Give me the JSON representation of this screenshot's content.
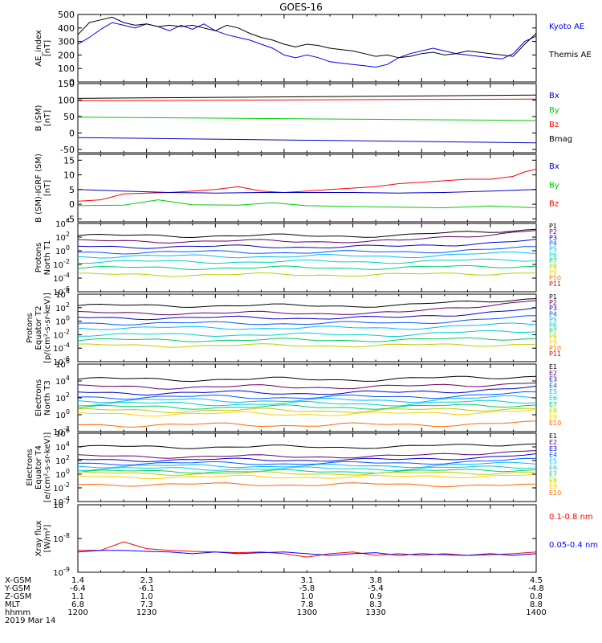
{
  "title": "GOES-16",
  "colors": {
    "black": "#000000",
    "blue": "#0000ff",
    "red": "#ff0000",
    "green": "#00cc00",
    "p_colors": [
      "#000000",
      "#660066",
      "#0000cc",
      "#0055ff",
      "#00bbff",
      "#00cccc",
      "#00cc66",
      "#bbcc00",
      "#ffcc00",
      "#ff6600",
      "#cc0000"
    ]
  },
  "chart_data": [
    {
      "type": "line",
      "ylabel": "AE_index\n[nT]",
      "ylim": [
        0,
        500
      ],
      "yticks": [
        "0",
        "100",
        "200",
        "300",
        "400",
        "500"
      ],
      "series": [
        {
          "name": "Kyoto AE",
          "color": "#0000ff",
          "x": [
            1200,
            1205,
            1210,
            1215,
            1220,
            1225,
            1230,
            1235,
            1240,
            1245,
            1250,
            1255,
            1260,
            1265,
            1270,
            1275,
            1280,
            1285,
            1290,
            1295,
            1300,
            1305,
            1310,
            1315,
            1320,
            1325,
            1330,
            1335,
            1340,
            1345,
            1350,
            1355,
            1360,
            1365,
            1370,
            1375,
            1380,
            1385,
            1390,
            1395,
            1400
          ],
          "y": [
            280,
            330,
            390,
            440,
            420,
            400,
            430,
            410,
            380,
            420,
            390,
            430,
            380,
            350,
            330,
            310,
            280,
            250,
            200,
            180,
            200,
            180,
            150,
            140,
            130,
            120,
            110,
            130,
            180,
            210,
            230,
            250,
            230,
            210,
            200,
            190,
            180,
            170,
            210,
            300,
            340
          ]
        },
        {
          "name": "Themis AE",
          "color": "#000000",
          "x": [
            1200,
            1205,
            1210,
            1215,
            1220,
            1225,
            1230,
            1235,
            1240,
            1245,
            1250,
            1255,
            1260,
            1265,
            1270,
            1275,
            1280,
            1285,
            1290,
            1295,
            1300,
            1305,
            1310,
            1315,
            1320,
            1325,
            1330,
            1335,
            1340,
            1345,
            1350,
            1355,
            1360,
            1365,
            1370,
            1375,
            1380,
            1385,
            1390,
            1395,
            1400
          ],
          "y": [
            350,
            440,
            460,
            480,
            440,
            420,
            430,
            410,
            420,
            410,
            420,
            400,
            380,
            420,
            400,
            360,
            330,
            310,
            280,
            260,
            280,
            270,
            250,
            240,
            230,
            210,
            190,
            200,
            180,
            190,
            210,
            220,
            200,
            210,
            230,
            220,
            210,
            200,
            190,
            280,
            360
          ]
        }
      ],
      "legend_labels": [
        "Kyoto AE",
        "Themis AE"
      ]
    },
    {
      "type": "line",
      "ylabel": "B (SM)\n[nT]",
      "ylim": [
        -60,
        150
      ],
      "yticks": [
        "-50",
        "0",
        "50",
        "100",
        "150"
      ],
      "series": [
        {
          "name": "Bmag",
          "color": "#000000",
          "x": [
            1200,
            1400
          ],
          "y": [
            105,
            115
          ]
        },
        {
          "name": "Bz",
          "color": "#ff0000",
          "x": [
            1200,
            1400
          ],
          "y": [
            98,
            103
          ]
        },
        {
          "name": "By",
          "color": "#00cc00",
          "x": [
            1200,
            1400
          ],
          "y": [
            48,
            38
          ]
        },
        {
          "name": "Bx",
          "color": "#0000cc",
          "x": [
            1200,
            1400
          ],
          "y": [
            -14,
            -30
          ]
        }
      ],
      "legend_labels": [
        "Bx",
        "By",
        "Bz",
        "Bmag"
      ]
    },
    {
      "type": "line",
      "ylabel": "B (SM)-IGRF (SM)\n[nT]",
      "ylim": [
        -6,
        17
      ],
      "yticks": [
        "-5",
        "0",
        "5",
        "10",
        "15"
      ],
      "series": [
        {
          "name": "Bz",
          "color": "#ff0000",
          "x": [
            1200,
            1210,
            1220,
            1230,
            1240,
            1250,
            1260,
            1270,
            1280,
            1290,
            1300,
            1310,
            1320,
            1330,
            1340,
            1350,
            1360,
            1370,
            1380,
            1390,
            1395,
            1400
          ],
          "y": [
            1,
            1.5,
            3.5,
            3.8,
            4,
            4.5,
            5,
            6,
            4.5,
            4,
            4.5,
            5,
            5.5,
            6,
            7,
            7.5,
            8,
            8.5,
            8.5,
            9.5,
            11,
            12
          ]
        },
        {
          "name": "Bx",
          "color": "#0000cc",
          "x": [
            1200,
            1220,
            1240,
            1260,
            1280,
            1300,
            1320,
            1340,
            1360,
            1380,
            1400
          ],
          "y": [
            5,
            4.5,
            4,
            3.8,
            4,
            4,
            4,
            3.8,
            4,
            4.5,
            5
          ]
        },
        {
          "name": "By",
          "color": "#00cc00",
          "x": [
            1200,
            1220,
            1235,
            1250,
            1270,
            1285,
            1300,
            1320,
            1340,
            1360,
            1380,
            1400
          ],
          "y": [
            -0.5,
            -0.3,
            1.5,
            -0.2,
            -0.3,
            0.5,
            -0.5,
            -0.8,
            -1,
            -1.2,
            -0.6,
            -1.2
          ]
        }
      ],
      "legend_labels": [
        "Bx",
        "By",
        "Bz"
      ]
    },
    {
      "type": "line",
      "ylabel": "Protons\nNorth T1",
      "log": true,
      "ylim_exp": [
        -6,
        4
      ],
      "ytick_exps": [
        -6,
        -4,
        -2,
        0,
        2,
        4
      ],
      "legend_labels": [
        "P1",
        "P2",
        "P3",
        "P4",
        "P5",
        "P6",
        "P7",
        "P8",
        "P9",
        "P10",
        "P11"
      ],
      "levels": [
        2.2,
        1.4,
        0.6,
        -0.2,
        -0.8,
        -1.6,
        -2.5,
        -3.5
      ],
      "bump_end": [
        3.2,
        3.0,
        1.5,
        0.4,
        -0.3,
        -1.3,
        -2.2,
        -3.2
      ]
    },
    {
      "type": "line",
      "ylabel": "Protons\nEquator T2\n[p/(cm²-s-sr-keV)]",
      "log": true,
      "ylim_exp": [
        -6,
        4
      ],
      "ytick_exps": [
        -6,
        -4,
        -2,
        0,
        2,
        4
      ],
      "legend_labels": [
        "P1",
        "P2",
        "P3",
        "P4",
        "P5",
        "P6",
        "P7",
        "P8",
        "P9",
        "P10",
        "P11"
      ],
      "levels": [
        2.3,
        1.2,
        0.5,
        -0.3,
        -1.0,
        -2.0,
        -2.8,
        -3.6
      ],
      "bump_end": [
        3.4,
        3.1,
        1.8,
        0.6,
        -0.4,
        -1.4,
        -2.5,
        -3.4
      ]
    },
    {
      "type": "line",
      "ylabel": "Electrons\nNorth T3",
      "log": true,
      "ylim_exp": [
        -2,
        6
      ],
      "ytick_exps": [
        -2,
        0,
        2,
        4,
        6
      ],
      "legend_labels": [
        "E1",
        "E2",
        "E3",
        "E4",
        "E5",
        "E6",
        "E7",
        "E8",
        "E9",
        "E10"
      ],
      "levels": [
        4.2,
        3.3,
        2.6,
        2.1,
        1.7,
        1.3,
        0.9,
        0.5,
        0.1,
        -1.2
      ],
      "bump_end": [
        4.6,
        3.8,
        3.2,
        2.5,
        2.1,
        1.6,
        1.2,
        0.8,
        0.5,
        -1.0
      ]
    },
    {
      "type": "line",
      "ylabel": "Electrons\nEquator T4\n[e/(cm²-s-sr-keV)]",
      "log": true,
      "ylim_exp": [
        -4,
        6
      ],
      "ytick_exps": [
        -4,
        -2,
        0,
        2,
        4,
        6
      ],
      "legend_labels": [
        "E1",
        "E2",
        "E3",
        "E4",
        "E5",
        "E6",
        "E7",
        "E8",
        "E9",
        "E10"
      ],
      "levels": [
        4.0,
        2.6,
        2.1,
        1.6,
        1.2,
        0.8,
        0.4,
        0.1,
        -0.4,
        -1.5
      ],
      "bump_end": [
        4.5,
        3.5,
        2.8,
        2.1,
        1.6,
        1.1,
        0.7,
        0.3,
        -0.1,
        -1.7
      ]
    },
    {
      "type": "line",
      "ylabel": "Xray flux\n[W/m²]",
      "log": true,
      "ylim_exp": [
        -9,
        -7
      ],
      "ytick_exps": [
        -9,
        -8,
        -7
      ],
      "series": [
        {
          "name": "0.1-0.8 nm",
          "color": "#ff0000",
          "x": [
            1200,
            1210,
            1220,
            1225,
            1230,
            1240,
            1250,
            1260,
            1270,
            1280,
            1290,
            1300,
            1310,
            1320,
            1330,
            1340,
            1350,
            1360,
            1370,
            1380,
            1390,
            1400
          ],
          "y": [
            -8.35,
            -8.35,
            -8.1,
            -8.2,
            -8.3,
            -8.35,
            -8.38,
            -8.4,
            -8.42,
            -8.4,
            -8.45,
            -8.55,
            -8.45,
            -8.4,
            -8.5,
            -8.45,
            -8.5,
            -8.45,
            -8.5,
            -8.48,
            -8.45,
            -8.4
          ]
        },
        {
          "name": "0.05-0.4 nm",
          "color": "#0000ff",
          "x": [
            1200,
            1210,
            1220,
            1230,
            1240,
            1250,
            1260,
            1270,
            1280,
            1290,
            1300,
            1310,
            1320,
            1330,
            1340,
            1350,
            1360,
            1370,
            1380,
            1390,
            1400
          ],
          "y": [
            -8.4,
            -8.35,
            -8.35,
            -8.38,
            -8.4,
            -8.45,
            -8.4,
            -8.45,
            -8.42,
            -8.4,
            -8.45,
            -8.5,
            -8.45,
            -8.42,
            -8.5,
            -8.45,
            -8.48,
            -8.5,
            -8.45,
            -8.5,
            -8.45
          ]
        }
      ],
      "legend_labels": [
        "0.1-0.8 nm",
        "0.05-0.4 nm"
      ]
    }
  ],
  "xaxis": {
    "row_labels": [
      "X-GSM",
      "Y-GSM",
      "Z-GSM",
      "MLT",
      "hhmm",
      "2019 Mar 14"
    ],
    "columns": [
      {
        "hhmm": "1200",
        "values": [
          "1.4",
          "-6.4",
          "1.1",
          "6.8"
        ]
      },
      {
        "hhmm": "1230",
        "values": [
          "2.3",
          "-6.1",
          "1.0",
          "7.3"
        ]
      },
      {
        "hhmm": "1300",
        "values": [
          "3.1",
          "-5.8",
          "1.0",
          "7.8"
        ]
      },
      {
        "hhmm": "1330",
        "values": [
          "3.8",
          "-5.4",
          "0.9",
          "8.3"
        ]
      },
      {
        "hhmm": "1400",
        "values": [
          "4.5",
          "-4.8",
          "0.8",
          "8.8"
        ]
      }
    ],
    "xlim": [
      1200,
      1400
    ]
  }
}
